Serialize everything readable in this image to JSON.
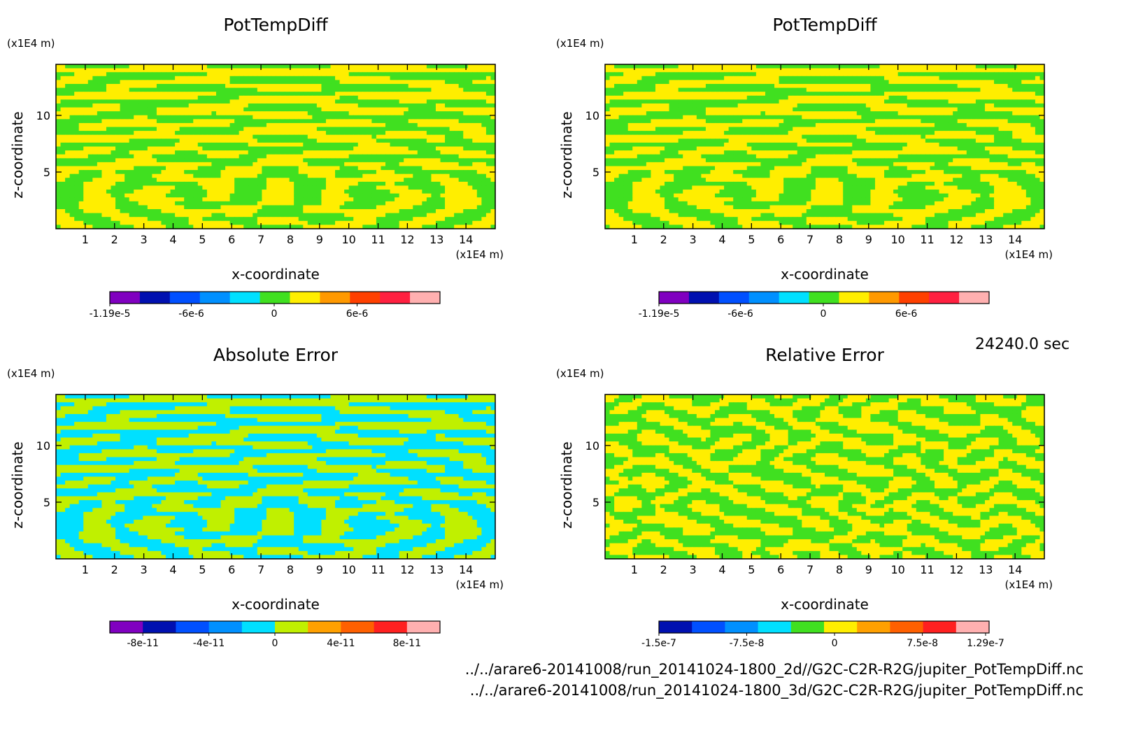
{
  "timestamp": "24240.0 sec",
  "footer": {
    "path_2d": "../../arare6-20141008/run_20141024-1800_2d//G2C-C2R-R2G/jupiter_PotTempDiff.nc",
    "path_3d": "../../arare6-20141008/run_20141024-1800_3d/G2C-C2R-R2G/jupiter_PotTempDiff.nc"
  },
  "chart_data": [
    {
      "type": "heatmap",
      "title": "PotTempDiff",
      "xlabel": "x-coordinate",
      "ylabel": "z-coordinate",
      "x_unit": "(x1E4 m)",
      "y_unit": "(x1E4 m)",
      "xlim": [
        0,
        15
      ],
      "ylim": [
        0,
        14.5
      ],
      "x_ticks": [
        "1",
        "2",
        "3",
        "4",
        "5",
        "6",
        "7",
        "8",
        "9",
        "10",
        "11",
        "12",
        "13",
        "14"
      ],
      "y_ticks": [
        "5",
        "10"
      ],
      "pattern": "swirl",
      "colorbar": {
        "colors": [
          "#8000c0",
          "#0010b0",
          "#0050ff",
          "#0090ff",
          "#00e0ff",
          "#40e020",
          "#ffee00",
          "#ff9900",
          "#ff4000",
          "#ff2040",
          "#ffb0b0"
        ],
        "labels": [
          "-1.19e-5",
          "-6e-6",
          "0",
          "6e-6"
        ],
        "label_positions": [
          -1.19e-05,
          -6e-06,
          0,
          6e-06
        ],
        "range": [
          -1.19e-05,
          1.2e-05
        ]
      },
      "dominant_colors": [
        "#40e020",
        "#ffee00"
      ]
    },
    {
      "type": "heatmap",
      "title": "PotTempDiff",
      "xlabel": "x-coordinate",
      "ylabel": "z-coordinate",
      "x_unit": "(x1E4 m)",
      "y_unit": "(x1E4 m)",
      "xlim": [
        0,
        15
      ],
      "ylim": [
        0,
        14.5
      ],
      "x_ticks": [
        "1",
        "2",
        "3",
        "4",
        "5",
        "6",
        "7",
        "8",
        "9",
        "10",
        "11",
        "12",
        "13",
        "14"
      ],
      "y_ticks": [
        "5",
        "10"
      ],
      "pattern": "swirl",
      "colorbar": {
        "colors": [
          "#8000c0",
          "#0010b0",
          "#0050ff",
          "#0090ff",
          "#00e0ff",
          "#40e020",
          "#ffee00",
          "#ff9900",
          "#ff4000",
          "#ff2040",
          "#ffb0b0"
        ],
        "labels": [
          "-1.19e-5",
          "-6e-6",
          "0",
          "6e-6"
        ],
        "label_positions": [
          -1.19e-05,
          -6e-06,
          0,
          6e-06
        ],
        "range": [
          -1.19e-05,
          1.2e-05
        ]
      },
      "dominant_colors": [
        "#40e020",
        "#ffee00"
      ]
    },
    {
      "type": "heatmap",
      "title": "Absolute Error",
      "xlabel": "x-coordinate",
      "ylabel": "z-coordinate",
      "x_unit": "(x1E4 m)",
      "y_unit": "(x1E4 m)",
      "xlim": [
        0,
        15
      ],
      "ylim": [
        0,
        14.5
      ],
      "x_ticks": [
        "1",
        "2",
        "3",
        "4",
        "5",
        "6",
        "7",
        "8",
        "9",
        "10",
        "11",
        "12",
        "13",
        "14"
      ],
      "y_ticks": [
        "5",
        "10"
      ],
      "pattern": "swirl",
      "colorbar": {
        "colors": [
          "#8000c0",
          "#0010b0",
          "#0050ff",
          "#0090ff",
          "#00e0ff",
          "#c0f000",
          "#ffa000",
          "#ff6000",
          "#ff2020",
          "#ffb0b0"
        ],
        "labels": [
          "-8e-11",
          "-4e-11",
          "0",
          "4e-11",
          "8e-11"
        ],
        "label_positions": [
          -8e-11,
          -4e-11,
          0,
          4e-11,
          8e-11
        ],
        "range": [
          -1e-10,
          1e-10
        ]
      },
      "dominant_colors": [
        "#00e0ff",
        "#c0f000"
      ]
    },
    {
      "type": "heatmap",
      "title": "Relative Error",
      "xlabel": "x-coordinate",
      "ylabel": "z-coordinate",
      "x_unit": "(x1E4 m)",
      "y_unit": "(x1E4 m)",
      "xlim": [
        0,
        15
      ],
      "ylim": [
        0,
        14.5
      ],
      "x_ticks": [
        "1",
        "2",
        "3",
        "4",
        "5",
        "6",
        "7",
        "8",
        "9",
        "10",
        "11",
        "12",
        "13",
        "14"
      ],
      "y_ticks": [
        "5",
        "10"
      ],
      "pattern": "noise",
      "colorbar": {
        "colors": [
          "#0010b0",
          "#0050ff",
          "#0090ff",
          "#00e0ff",
          "#40e020",
          "#ffee00",
          "#ffa000",
          "#ff6000",
          "#ff2020",
          "#ffb0b0"
        ],
        "labels": [
          "-1.5e-7",
          "-7.5e-8",
          "0",
          "7.5e-8",
          "1.29e-7"
        ],
        "label_positions": [
          -1.5e-07,
          -7.5e-08,
          0,
          7.5e-08,
          1.29e-07
        ],
        "range": [
          -1.5e-07,
          1.32e-07
        ]
      },
      "dominant_colors": [
        "#40e020",
        "#ffee00"
      ]
    }
  ]
}
